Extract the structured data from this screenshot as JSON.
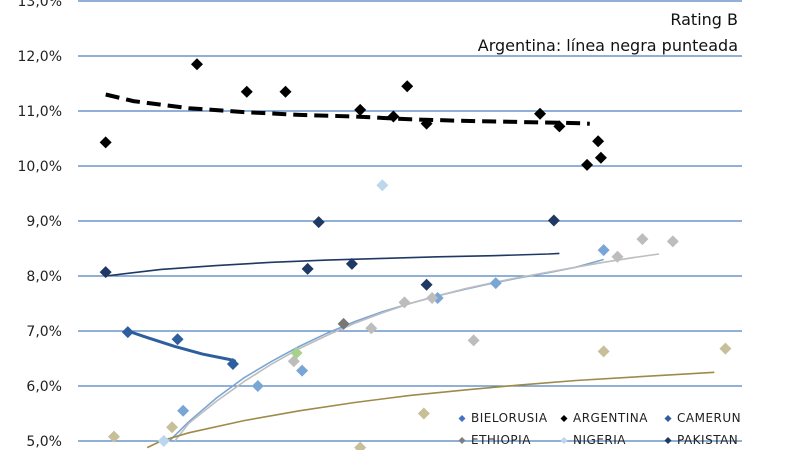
{
  "chart_data": {
    "type": "scatter",
    "title": "Rating B",
    "subtitle": "Argentina: línea negra punteada",
    "ylim": [
      5.0,
      13.0
    ],
    "xlim": [
      0,
      24
    ],
    "y_ticks": [
      {
        "value": 13.0,
        "label": "13,0%"
      },
      {
        "value": 12.0,
        "label": "12,0%"
      },
      {
        "value": 11.0,
        "label": "11,0%"
      },
      {
        "value": 10.0,
        "label": "10,0%"
      },
      {
        "value": 9.0,
        "label": "9,0%"
      },
      {
        "value": 8.0,
        "label": "8,0%"
      },
      {
        "value": 7.0,
        "label": "7,0%"
      },
      {
        "value": 6.0,
        "label": "6,0%"
      },
      {
        "value": 5.0,
        "label": "5,0%"
      }
    ],
    "grid": true,
    "legend_position": "bottom-right",
    "series": [
      {
        "name": "ARGENTINA",
        "color": "#000000",
        "points": [
          [
            1.0,
            10.43
          ],
          [
            4.3,
            11.85
          ],
          [
            6.1,
            11.35
          ],
          [
            7.5,
            11.35
          ],
          [
            10.2,
            11.02
          ],
          [
            11.4,
            10.9
          ],
          [
            11.9,
            11.45
          ],
          [
            12.6,
            10.77
          ],
          [
            16.7,
            10.95
          ],
          [
            17.4,
            10.72
          ],
          [
            18.4,
            10.02
          ],
          [
            18.8,
            10.45
          ],
          [
            18.9,
            10.15
          ]
        ],
        "trend": {
          "style": "dashed",
          "points": [
            [
              1.0,
              11.3
            ],
            [
              2.0,
              11.18
            ],
            [
              4.0,
              11.05
            ],
            [
              6.0,
              10.98
            ],
            [
              8.0,
              10.93
            ],
            [
              10.0,
              10.9
            ],
            [
              12.0,
              10.85
            ],
            [
              14.0,
              10.82
            ],
            [
              16.0,
              10.8
            ],
            [
              18.0,
              10.78
            ],
            [
              18.5,
              10.77
            ]
          ]
        }
      },
      {
        "name": "PAKISTAN",
        "color": "#1f3864",
        "points": [
          [
            1.0,
            8.07
          ],
          [
            8.7,
            8.98
          ],
          [
            8.3,
            8.13
          ],
          [
            9.9,
            8.22
          ],
          [
            12.6,
            7.84
          ],
          [
            17.2,
            9.01
          ]
        ],
        "trend": {
          "style": "solid",
          "points": [
            [
              1.0,
              8.0
            ],
            [
              3.0,
              8.12
            ],
            [
              5.0,
              8.19
            ],
            [
              7.0,
              8.25
            ],
            [
              9.0,
              8.29
            ],
            [
              11.0,
              8.32
            ],
            [
              13.0,
              8.35
            ],
            [
              15.0,
              8.37
            ],
            [
              17.0,
              8.4
            ],
            [
              17.4,
              8.41
            ]
          ]
        }
      },
      {
        "name": "CAMERUN",
        "color": "#2e5e9e",
        "points": [
          [
            1.8,
            6.98
          ],
          [
            3.6,
            6.85
          ],
          [
            5.6,
            6.4
          ]
        ],
        "trend": {
          "style": "solid",
          "points": [
            [
              1.8,
              7.0
            ],
            [
              2.5,
              6.88
            ],
            [
              3.5,
              6.72
            ],
            [
              4.5,
              6.58
            ],
            [
              5.5,
              6.48
            ],
            [
              5.7,
              6.45
            ]
          ]
        }
      },
      {
        "name": "BIELORUSIA",
        "color": "#7aa6d6",
        "points": [
          [
            3.8,
            5.55
          ],
          [
            6.5,
            6.0
          ],
          [
            8.1,
            6.28
          ],
          [
            13.0,
            7.6
          ],
          [
            15.1,
            7.87
          ],
          [
            19.0,
            8.47
          ]
        ],
        "trend": {
          "style": "solid",
          "points": [
            [
              3.3,
              5.0
            ],
            [
              4.0,
              5.35
            ],
            [
              5.0,
              5.78
            ],
            [
              6.0,
              6.15
            ],
            [
              7.0,
              6.45
            ],
            [
              8.0,
              6.72
            ],
            [
              9.0,
              6.96
            ],
            [
              10.0,
              7.17
            ],
            [
              11.0,
              7.35
            ],
            [
              12.0,
              7.5
            ],
            [
              13.0,
              7.64
            ],
            [
              14.0,
              7.76
            ],
            [
              15.0,
              7.87
            ],
            [
              16.0,
              7.97
            ],
            [
              17.0,
              8.06
            ],
            [
              18.0,
              8.16
            ],
            [
              19.0,
              8.3
            ]
          ]
        }
      },
      {
        "name": "NIGERIA",
        "color": "#bcd6ee",
        "points": [
          [
            3.1,
            5.0
          ],
          [
            11.0,
            9.65
          ]
        ]
      },
      {
        "name": "ETHIOPIA",
        "color": "#777777",
        "points": [
          [
            9.6,
            7.13
          ]
        ]
      },
      {
        "name": "",
        "color": "#bdbdbd",
        "points": [
          [
            7.8,
            6.45
          ],
          [
            10.6,
            7.05
          ],
          [
            11.8,
            7.52
          ],
          [
            12.8,
            7.6
          ],
          [
            14.3,
            6.83
          ],
          [
            19.5,
            8.35
          ],
          [
            20.4,
            8.67
          ],
          [
            21.5,
            8.63
          ]
        ],
        "trend": {
          "style": "solid",
          "points": [
            [
              3.5,
              5.0
            ],
            [
              4.0,
              5.32
            ],
            [
              5.0,
              5.72
            ],
            [
              6.0,
              6.08
            ],
            [
              7.0,
              6.4
            ],
            [
              8.0,
              6.68
            ],
            [
              9.0,
              6.92
            ],
            [
              10.0,
              7.14
            ],
            [
              11.0,
              7.33
            ],
            [
              12.0,
              7.5
            ],
            [
              13.0,
              7.64
            ],
            [
              14.0,
              7.77
            ],
            [
              15.0,
              7.88
            ],
            [
              16.0,
              7.98
            ],
            [
              17.0,
              8.07
            ],
            [
              18.0,
              8.16
            ],
            [
              19.0,
              8.25
            ],
            [
              20.0,
              8.33
            ],
            [
              21.0,
              8.4
            ]
          ]
        }
      },
      {
        "name": "",
        "color": "#c7bf99",
        "points": [
          [
            1.3,
            5.08
          ],
          [
            3.4,
            5.25
          ],
          [
            12.5,
            5.5
          ],
          [
            19.0,
            6.63
          ],
          [
            23.4,
            6.68
          ],
          [
            10.2,
            4.88
          ]
        ],
        "trend": {
          "style": "solid",
          "points": [
            [
              2.5,
              4.88
            ],
            [
              3.0,
              5.0
            ],
            [
              4.0,
              5.15
            ],
            [
              6.0,
              5.37
            ],
            [
              8.0,
              5.55
            ],
            [
              10.0,
              5.7
            ],
            [
              12.0,
              5.83
            ],
            [
              14.0,
              5.93
            ],
            [
              16.0,
              6.02
            ],
            [
              18.0,
              6.1
            ],
            [
              20.0,
              6.16
            ],
            [
              22.0,
              6.22
            ],
            [
              23.0,
              6.25
            ]
          ],
          "color": "#9e8a4a"
        }
      },
      {
        "name": "",
        "color": "#a9d18e",
        "points": [
          [
            7.9,
            6.6
          ]
        ]
      }
    ],
    "legend": [
      {
        "label": "BIELORUSIA",
        "color": "#4472c4"
      },
      {
        "label": "ARGENTINA",
        "color": "#000000"
      },
      {
        "label": "CAMERUN",
        "color": "#2e5e9e"
      },
      {
        "label": "ETHIOPIA",
        "color": "#7f7f7f"
      },
      {
        "label": "NIGERIA",
        "color": "#bcd6ee"
      },
      {
        "label": "PAKISTAN",
        "color": "#1f3864"
      }
    ]
  }
}
